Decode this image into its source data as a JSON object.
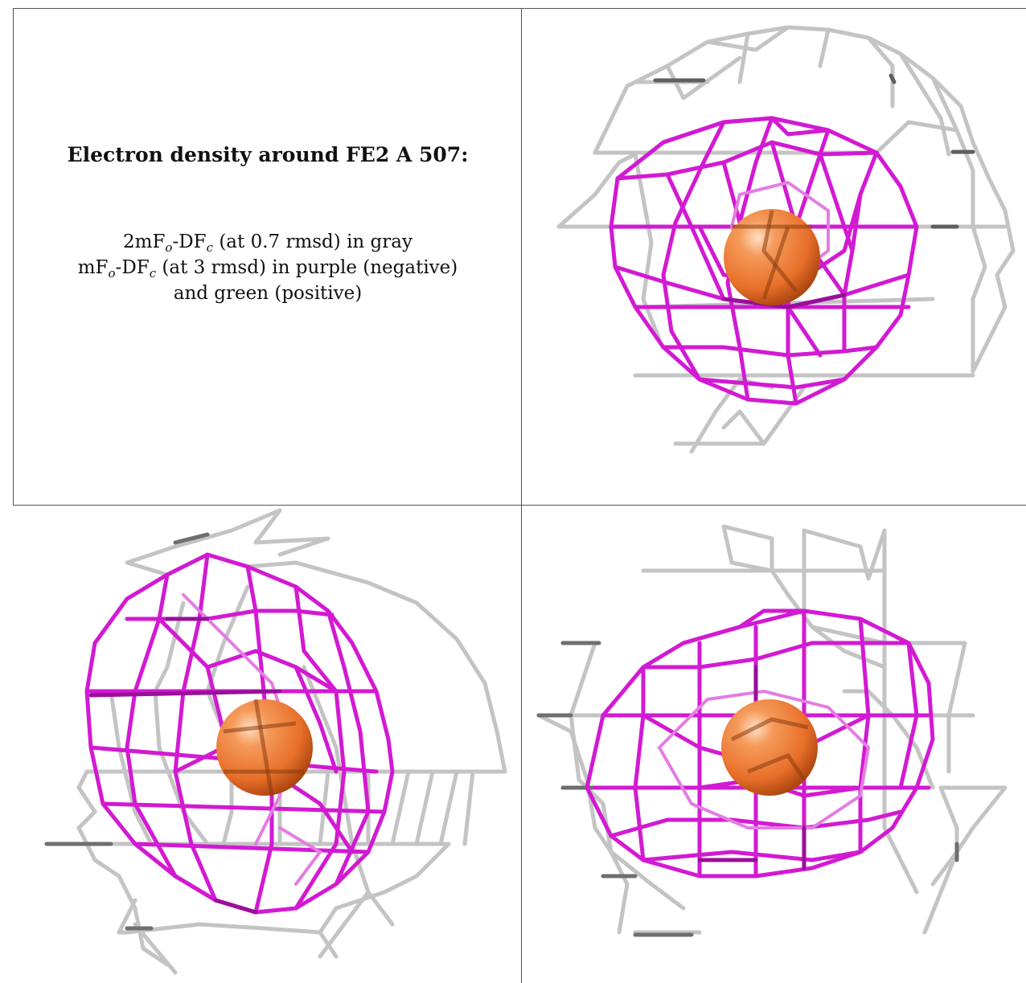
{
  "caption": {
    "title": "Electron density around FE2 A 507:",
    "line1_prefix": "2mF",
    "line1_sub_o": "o",
    "line1_mid": "-DF",
    "line1_sub_c": "c",
    "line1_suffix": " (at 0.7 rmsd) in gray",
    "line2_prefix": "mF",
    "line2_sub_o": "o",
    "line2_mid": "-DF",
    "line2_sub_c": "c",
    "line2_suffix": " (at 3 rmsd) in purple (negative)",
    "line3": "and green (positive)"
  },
  "colors": {
    "gray_mesh": "#b8b8b8",
    "gray_mesh_dark": "#7a7a7a",
    "purple_mesh": "#d21ad2",
    "purple_dark": "#9a0f9a",
    "atom": "#e8702a",
    "atom_highlight": "#ffd6b0"
  },
  "views": [
    {
      "name": "view-top-right",
      "icon": "fe-atom-mesh-view-1"
    },
    {
      "name": "view-bottom-left",
      "icon": "fe-atom-mesh-view-2"
    },
    {
      "name": "view-bottom-right",
      "icon": "fe-atom-mesh-view-3"
    }
  ]
}
